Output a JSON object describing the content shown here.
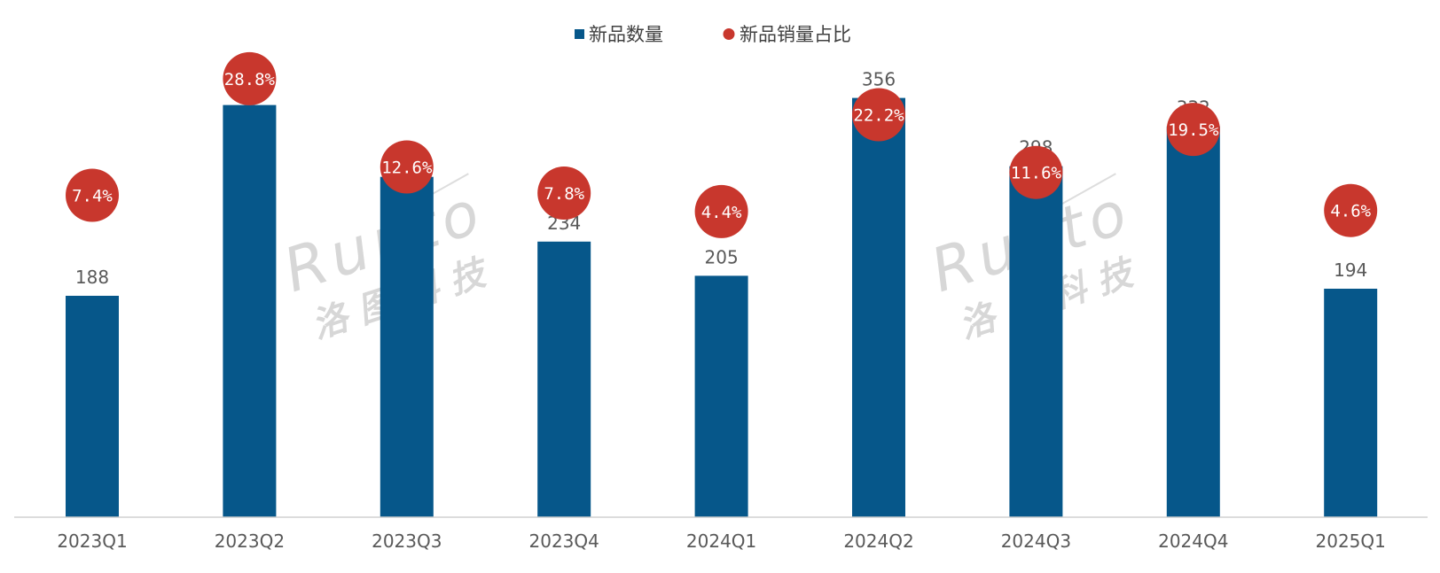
{
  "chart_data": {
    "type": "bar",
    "categories": [
      "2023Q1",
      "2023Q2",
      "2023Q3",
      "2023Q4",
      "2024Q1",
      "2024Q2",
      "2024Q3",
      "2024Q4",
      "2025Q1"
    ],
    "series": [
      {
        "name": "新品数量",
        "type": "bar",
        "color": "#06578a",
        "values": [
          188,
          350,
          289,
          234,
          205,
          356,
          298,
          332,
          194
        ]
      },
      {
        "name": "新品销量占比",
        "type": "scatter",
        "color": "#c8372d",
        "values": [
          7.4,
          28.8,
          12.6,
          7.8,
          4.4,
          22.2,
          11.6,
          19.5,
          4.6
        ],
        "labels": [
          "7.4%",
          "28.8%",
          "12.6%",
          "7.8%",
          "4.4%",
          "22.2%",
          "11.6%",
          "19.5%",
          "4.6%"
        ]
      }
    ],
    "ylim": [
      0,
      400
    ],
    "y2lim": [
      0,
      34
    ],
    "grid": false,
    "legend_position": "top-center",
    "title": "",
    "xlabel": "",
    "ylabel": ""
  },
  "watermark": {
    "brand": "Runto",
    "chinese": "洛图科技"
  }
}
